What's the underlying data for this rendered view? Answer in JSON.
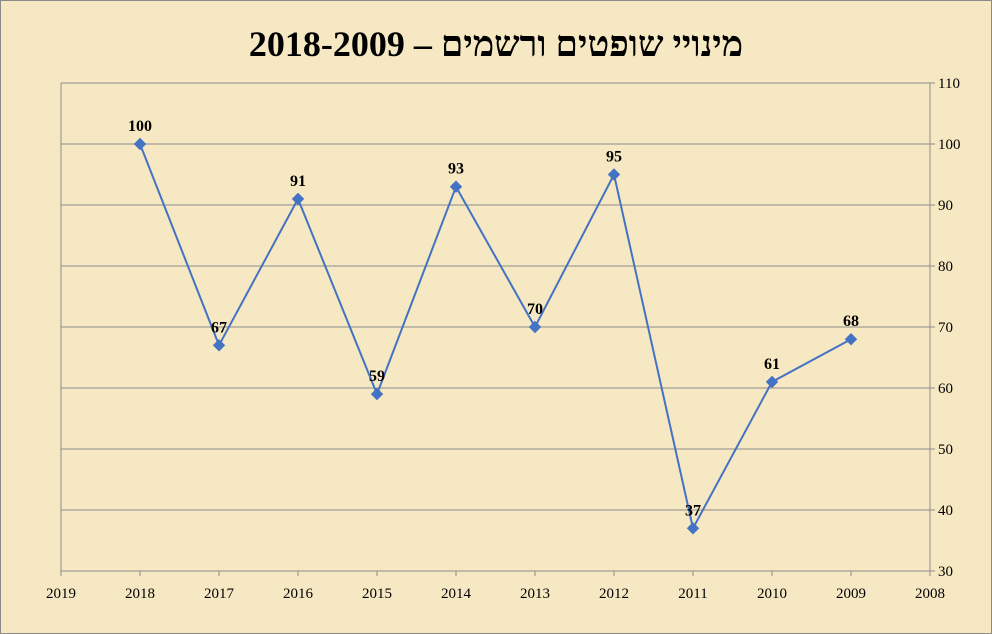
{
  "chart_data": {
    "type": "line",
    "title": "מינויי שופטים ורשמים – 2018-2009",
    "x_categories": [
      "2019",
      "2018",
      "2017",
      "2016",
      "2015",
      "2014",
      "2013",
      "2012",
      "2011",
      "2010",
      "2009",
      "2008"
    ],
    "points": [
      {
        "x": "2018",
        "y": 100
      },
      {
        "x": "2017",
        "y": 67
      },
      {
        "x": "2016",
        "y": 91
      },
      {
        "x": "2015",
        "y": 59
      },
      {
        "x": "2014",
        "y": 93
      },
      {
        "x": "2013",
        "y": 70
      },
      {
        "x": "2012",
        "y": 95
      },
      {
        "x": "2011",
        "y": 37
      },
      {
        "x": "2010",
        "y": 61
      },
      {
        "x": "2009",
        "y": 68
      }
    ],
    "ylim": [
      30,
      110
    ],
    "yticks": [
      30,
      40,
      50,
      60,
      70,
      80,
      90,
      100,
      110
    ],
    "y_axis_side": "right",
    "x_axis_reversed": true,
    "grid": true,
    "line_color": "#4472c4",
    "marker": "diamond",
    "data_labels": true
  }
}
